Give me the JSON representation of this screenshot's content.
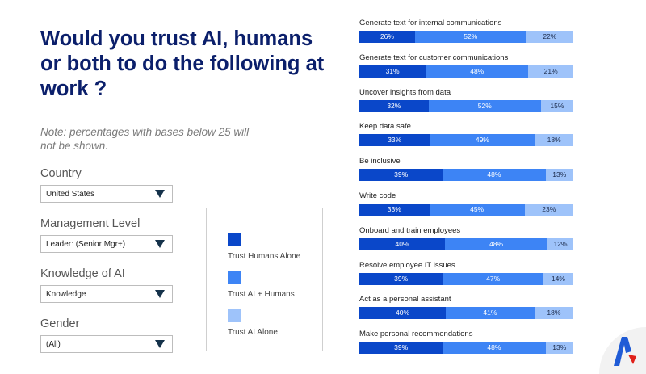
{
  "title": "Would you trust AI, humans or both to do the following at work ?",
  "note": "Note: percentages with bases below 25 will not be shown.",
  "filters": [
    {
      "label": "Country",
      "value": "United States"
    },
    {
      "label": "Management Level",
      "value": "Leader: (Senior Mgr+)"
    },
    {
      "label": "Knowledge of AI",
      "value": "Knowledge"
    },
    {
      "label": "Gender",
      "value": "(All)"
    }
  ],
  "colors": {
    "humans_alone": "#0a47c9",
    "ai_humans": "#3d84f5",
    "ai_alone": "#9ec3fa"
  },
  "chart_data": {
    "type": "bar",
    "orientation": "horizontal",
    "stacked": true,
    "categories": [
      "Generate text for internal communications",
      "Generate text for customer communications",
      "Uncover insights from data",
      "Keep data safe",
      "Be inclusive",
      "Write code",
      "Onboard and train employees",
      "Resolve employee IT issues",
      "Act as a personal assistant",
      "Make personal recommendations"
    ],
    "series": [
      {
        "name": "Trust Humans Alone",
        "values": [
          26,
          31,
          32,
          33,
          39,
          33,
          40,
          39,
          40,
          39
        ],
        "labels": [
          "26%",
          "31%",
          "32%",
          "33%",
          "39%",
          "33%",
          "40%",
          "39%",
          "40%",
          "39%"
        ]
      },
      {
        "name": "Trust AI + Humans",
        "values": [
          52,
          48,
          52,
          49,
          48,
          45,
          48,
          47,
          41,
          48
        ],
        "labels": [
          "52%",
          "48%",
          "52%",
          "49%",
          "48%",
          "45%",
          "48%",
          "47%",
          "41%",
          "48%"
        ]
      },
      {
        "name": "Trust AI Alone",
        "values": [
          22,
          21,
          15,
          18,
          13,
          23,
          12,
          14,
          18,
          13
        ],
        "labels": [
          "22%",
          "21%",
          "15%",
          "18%",
          "13%",
          "23%",
          "12%",
          "14%",
          "18%",
          "13%"
        ]
      }
    ],
    "xlim": [
      0,
      100
    ]
  }
}
